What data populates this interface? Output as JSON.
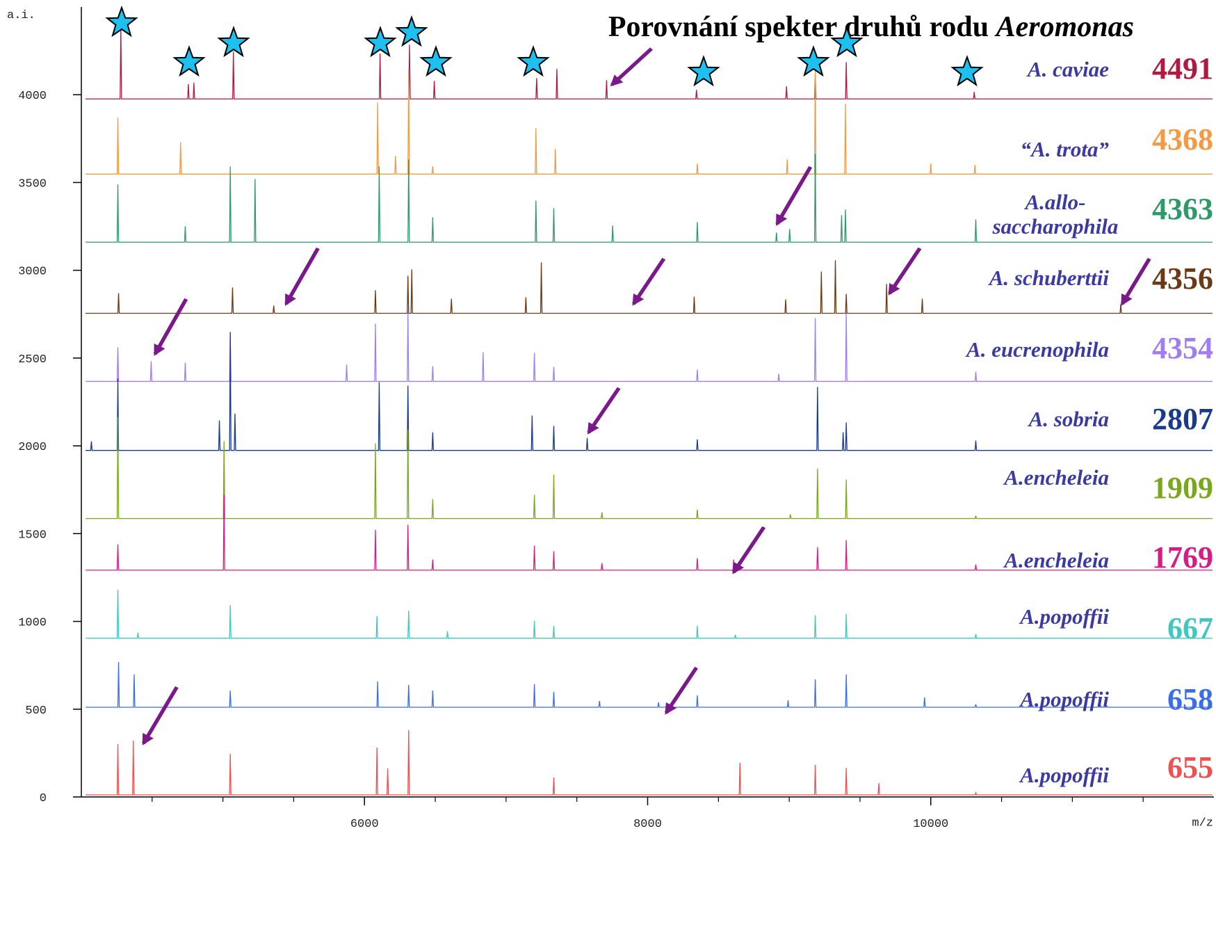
{
  "chart_data": {
    "type": "line",
    "title": "Porovnání spekter druhů rodu",
    "title_genus": "Aeromonas",
    "y_label": "a.i.",
    "x_label": "m/z",
    "xlim": [
      4000,
      12000
    ],
    "xticks": [
      6000,
      8000,
      10000
    ],
    "xticks_minor": [
      4500,
      5000,
      5500,
      6500,
      7000,
      7500,
      8500,
      9000,
      9500,
      10500,
      11000,
      11500
    ],
    "ylim": [
      0,
      4500
    ],
    "yticks": [
      0,
      500,
      1000,
      1500,
      2000,
      2500,
      3000,
      3500,
      4000
    ],
    "label_color": "#3a3aa0",
    "series": [
      {
        "name": "A. caviae",
        "id": "4491",
        "color": "#b01a40",
        "x": [
          4030,
          4274,
          4279,
          4284,
          4751,
          4756,
          4761,
          4790,
          4795,
          4800,
          5069,
          5074,
          5079,
          6105,
          6110,
          6115,
          6313,
          6318,
          6323,
          6488,
          6493,
          6498,
          7211,
          7216,
          7221,
          7354,
          7359,
          7364,
          7705,
          7710,
          7715,
          8340,
          8345,
          8350,
          8976,
          8981,
          8986,
          9179,
          9184,
          9189,
          9398,
          9403,
          9408,
          10302,
          10307,
          10312,
          11990
        ],
        "values": [
          3976,
          3976,
          4385,
          3976,
          3976,
          4060,
          3976,
          3976,
          4068,
          3976,
          3976,
          4246,
          3976,
          3976,
          4234,
          3976,
          3976,
          4285,
          3976,
          3976,
          4079,
          3976,
          3976,
          4095,
          3976,
          3976,
          4147,
          3976,
          3976,
          4083,
          3976,
          3976,
          4028,
          3976,
          3976,
          4048,
          3976,
          3976,
          4115,
          3976,
          3976,
          4186,
          3976,
          3976,
          4016,
          3976,
          3976
        ]
      },
      {
        "name": "“A. trota”",
        "id": "4368",
        "color": "#f59a40",
        "x": [
          4030,
          4253,
          4258,
          4263,
          4696,
          4701,
          4706,
          6088,
          6093,
          6098,
          6214,
          6219,
          6224,
          6307,
          6312,
          6317,
          6477,
          6482,
          6487,
          7206,
          7211,
          7216,
          7343,
          7348,
          7353,
          8346,
          8351,
          8356,
          8981,
          8986,
          8991,
          9179,
          9184,
          9189,
          9392,
          9397,
          9402,
          9995,
          10000,
          10005,
          10307,
          10312,
          10317,
          11990
        ],
        "values": [
          3548,
          3548,
          3869,
          3548,
          3548,
          3730,
          3548,
          3548,
          3956,
          3548,
          3548,
          3651,
          3548,
          3548,
          4147,
          3548,
          3548,
          3592,
          3548,
          3548,
          3810,
          3548,
          3548,
          3691,
          3548,
          3548,
          3608,
          3548,
          3548,
          3631,
          3548,
          3548,
          4147,
          3548,
          3548,
          3949,
          3548,
          3548,
          3608,
          3548,
          3548,
          3600,
          3548,
          3548
        ]
      },
      {
        "name": "A.allo-saccharophila",
        "id": "4363",
        "color": "#2e9a6a",
        "x": [
          4030,
          4253,
          4258,
          4263,
          4729,
          4734,
          4739,
          5047,
          5052,
          5057,
          5222,
          5227,
          5232,
          6099,
          6104,
          6109,
          6307,
          6312,
          6317,
          6477,
          6482,
          6487,
          7206,
          7211,
          7216,
          7332,
          7337,
          7342,
          7748,
          7753,
          7758,
          8346,
          8351,
          8356,
          8905,
          8910,
          8915,
          8998,
          9003,
          9008,
          9179,
          9184,
          9189,
          9365,
          9370,
          9375,
          9392,
          9397,
          9402,
          10313,
          10318,
          10323,
          11990
        ],
        "values": [
          3160,
          3160,
          3489,
          3160,
          3160,
          3251,
          3160,
          3160,
          3592,
          3160,
          3160,
          3520,
          3160,
          3160,
          3592,
          3160,
          3160,
          3631,
          3160,
          3160,
          3302,
          3160,
          3160,
          3397,
          3160,
          3160,
          3354,
          3160,
          3160,
          3255,
          3160,
          3160,
          3275,
          3160,
          3160,
          3215,
          3160,
          3160,
          3235,
          3160,
          3160,
          3663,
          3160,
          3160,
          3314,
          3160,
          3160,
          3346,
          3160,
          3160,
          3290,
          3160,
          3160
        ]
      },
      {
        "name": "A. schuberttii",
        "id": "4356",
        "color": "#6b3a14",
        "x": [
          4030,
          4258,
          4263,
          4268,
          5063,
          5068,
          5073,
          5354,
          5359,
          5364,
          6072,
          6077,
          6082,
          6302,
          6307,
          6312,
          6329,
          6334,
          6339,
          6609,
          6614,
          6619,
          7135,
          7140,
          7145,
          7244,
          7249,
          7254,
          8324,
          8329,
          8334,
          8970,
          8975,
          8980,
          9222,
          9227,
          9232,
          9321,
          9326,
          9331,
          9398,
          9403,
          9408,
          9683,
          9688,
          9693,
          9935,
          9940,
          9945,
          11337,
          11342,
          11347,
          11990
        ],
        "values": [
          2755,
          2755,
          2870,
          2755,
          2755,
          2902,
          2755,
          2755,
          2799,
          2755,
          2755,
          2886,
          2755,
          2755,
          2969,
          2755,
          2755,
          3005,
          2755,
          2755,
          2838,
          2755,
          2755,
          2846,
          2755,
          2755,
          3045,
          2755,
          2755,
          2850,
          2755,
          2755,
          2834,
          2755,
          2755,
          2993,
          2755,
          2755,
          3057,
          2755,
          2755,
          2866,
          2755,
          2755,
          2922,
          2755,
          2755,
          2838,
          2755,
          2755,
          2807,
          2755,
          2755
        ]
      },
      {
        "name": "A. eucrenophila",
        "id": "4354",
        "color": "#a07ef0",
        "x": [
          4030,
          4253,
          4258,
          4263,
          4488,
          4493,
          4498,
          4729,
          4734,
          4739,
          5047,
          5052,
          5057,
          5869,
          5874,
          5879,
          6072,
          6077,
          6082,
          6302,
          6307,
          6312,
          6477,
          6482,
          6487,
          6833,
          6838,
          6843,
          7195,
          7200,
          7205,
          7332,
          7337,
          7342,
          8346,
          8351,
          8356,
          8921,
          8926,
          8931,
          9179,
          9184,
          9189,
          9398,
          9403,
          9408,
          10313,
          10318,
          10323,
          11990
        ],
        "values": [
          2367,
          2367,
          2561,
          2367,
          2367,
          2482,
          2367,
          2367,
          2474,
          2367,
          2367,
          2648,
          2367,
          2367,
          2462,
          2367,
          2367,
          2696,
          2367,
          2367,
          2767,
          2367,
          2367,
          2454,
          2367,
          2367,
          2533,
          2367,
          2367,
          2529,
          2367,
          2367,
          2450,
          2367,
          2367,
          2434,
          2367,
          2367,
          2410,
          2367,
          2367,
          2727,
          2367,
          2367,
          2767,
          2367,
          2367,
          2422,
          2367,
          2367
        ]
      },
      {
        "name": "A. sobria",
        "id": "2807",
        "color": "#1a3a8c",
        "x": [
          4030,
          4066,
          4071,
          4076,
          4253,
          4258,
          4263,
          4970,
          4975,
          4980,
          5047,
          5052,
          5057,
          5080,
          5085,
          5090,
          6099,
          6104,
          6109,
          6302,
          6307,
          6312,
          6477,
          6482,
          6487,
          7179,
          7184,
          7189,
          7332,
          7337,
          7342,
          7568,
          7573,
          7578,
          8346,
          8351,
          8356,
          9195,
          9200,
          9205,
          9376,
          9381,
          9386,
          9398,
          9403,
          9408,
          10313,
          10318,
          10323,
          11990
        ],
        "values": [
          1974,
          1974,
          2026,
          1974,
          1974,
          2383,
          1974,
          1974,
          2145,
          1974,
          1974,
          2648,
          1974,
          1974,
          2184,
          1974,
          1974,
          2363,
          1974,
          1974,
          2343,
          1974,
          1974,
          2077,
          1974,
          1974,
          2172,
          1974,
          1974,
          2113,
          1974,
          1974,
          2045,
          1974,
          1974,
          2037,
          1974,
          1974,
          2335,
          1974,
          1974,
          2077,
          1974,
          1974,
          2133,
          1974,
          1974,
          2030,
          1974,
          1974
        ]
      },
      {
        "name": "A.encheleia",
        "id": "1909",
        "color": "#7aa81c",
        "x": [
          4030,
          4253,
          4258,
          4263,
          5003,
          5008,
          5013,
          6072,
          6077,
          6082,
          6302,
          6307,
          6312,
          6477,
          6482,
          6487,
          7195,
          7200,
          7205,
          7332,
          7337,
          7342,
          7672,
          7677,
          7682,
          8346,
          8351,
          8356,
          9003,
          9008,
          9013,
          9195,
          9200,
          9205,
          9398,
          9403,
          9408,
          10313,
          10318,
          10323,
          11990
        ],
        "values": [
          1586,
          1586,
          2164,
          1586,
          1586,
          2026,
          1586,
          1586,
          2014,
          1586,
          1586,
          2093,
          1586,
          1586,
          1697,
          1586,
          1586,
          1721,
          1586,
          1586,
          1836,
          1586,
          1586,
          1622,
          1586,
          1586,
          1637,
          1586,
          1586,
          1610,
          1586,
          1586,
          1871,
          1586,
          1586,
          1808,
          1586,
          1586,
          1602,
          1586,
          1586
        ]
      },
      {
        "name": "A.encheleia",
        "id": "1769",
        "color": "#d81c86",
        "x": [
          4030,
          4253,
          4258,
          4263,
          5003,
          5008,
          5013,
          6072,
          6077,
          6082,
          6302,
          6307,
          6312,
          6477,
          6482,
          6487,
          7195,
          7200,
          7205,
          7332,
          7337,
          7342,
          7672,
          7677,
          7682,
          8346,
          8351,
          8356,
          8603,
          8608,
          8613,
          9195,
          9200,
          9205,
          9398,
          9403,
          9408,
          10313,
          10318,
          10323,
          11990
        ],
        "values": [
          1292,
          1292,
          1439,
          1292,
          1292,
          1721,
          1292,
          1292,
          1522,
          1292,
          1292,
          1550,
          1292,
          1292,
          1352,
          1292,
          1292,
          1431,
          1292,
          1292,
          1399,
          1292,
          1292,
          1332,
          1292,
          1292,
          1360,
          1292,
          1292,
          1352,
          1292,
          1292,
          1423,
          1292,
          1292,
          1463,
          1292,
          1292,
          1324,
          1292,
          1292
        ]
      },
      {
        "name": "A.popoffii",
        "id": "667",
        "color": "#40c8c0",
        "x": [
          4030,
          4253,
          4258,
          4263,
          4395,
          4400,
          4405,
          5047,
          5052,
          5057,
          6083,
          6088,
          6093,
          6307,
          6312,
          6317,
          6581,
          6586,
          6591,
          7195,
          7200,
          7205,
          7332,
          7337,
          7342,
          8346,
          8351,
          8356,
          8614,
          8619,
          8624,
          9179,
          9184,
          9189,
          9398,
          9403,
          9408,
          10313,
          10318,
          10323,
          11990
        ],
        "values": [
          904,
          904,
          1181,
          904,
          904,
          936,
          904,
          904,
          1094,
          904,
          904,
          1031,
          904,
          904,
          1062,
          904,
          904,
          944,
          904,
          904,
          1003,
          904,
          904,
          975,
          904,
          904,
          975,
          904,
          904,
          924,
          904,
          904,
          1035,
          904,
          904,
          1043,
          904,
          904,
          928,
          904,
          904
        ]
      },
      {
        "name": "A.popoffii",
        "id": "658",
        "color": "#3a6ee8",
        "x": [
          4030,
          4258,
          4263,
          4268,
          4368,
          4373,
          4378,
          5047,
          5052,
          5057,
          6088,
          6093,
          6098,
          6307,
          6312,
          6317,
          6477,
          6482,
          6487,
          7195,
          7200,
          7205,
          7332,
          7337,
          7342,
          7655,
          7660,
          7665,
          8072,
          8077,
          8082,
          8346,
          8351,
          8356,
          8987,
          8992,
          8997,
          9179,
          9184,
          9189,
          9398,
          9403,
          9408,
          9951,
          9956,
          9961,
          10313,
          10318,
          10323,
          11990
        ],
        "values": [
          511,
          511,
          769,
          511,
          511,
          698,
          511,
          511,
          606,
          511,
          511,
          658,
          511,
          511,
          638,
          511,
          511,
          606,
          511,
          511,
          642,
          511,
          511,
          599,
          511,
          511,
          547,
          511,
          511,
          539,
          511,
          511,
          579,
          511,
          511,
          551,
          511,
          511,
          670,
          511,
          511,
          698,
          511,
          511,
          567,
          511,
          511,
          527,
          511,
          511
        ]
      },
      {
        "name": "A.popoffii",
        "id": "655",
        "color": "#f05050",
        "x": [
          4030,
          4253,
          4258,
          4263,
          4362,
          4367,
          4372,
          5047,
          5052,
          5057,
          6083,
          6088,
          6093,
          6159,
          6164,
          6169,
          6307,
          6312,
          6317,
          7332,
          7337,
          7342,
          8647,
          8652,
          8657,
          9179,
          9184,
          9189,
          9398,
          9403,
          9408,
          9628,
          9633,
          9638,
          10313,
          10318,
          10323,
          11990
        ],
        "values": [
          12,
          12,
          301,
          12,
          12,
          321,
          12,
          12,
          246,
          12,
          12,
          281,
          12,
          12,
          163,
          12,
          12,
          381,
          12,
          12,
          111,
          12,
          12,
          194,
          12,
          12,
          182,
          12,
          12,
          166,
          12,
          12,
          79,
          12,
          12,
          24,
          12,
          12
        ]
      }
    ]
  }
}
